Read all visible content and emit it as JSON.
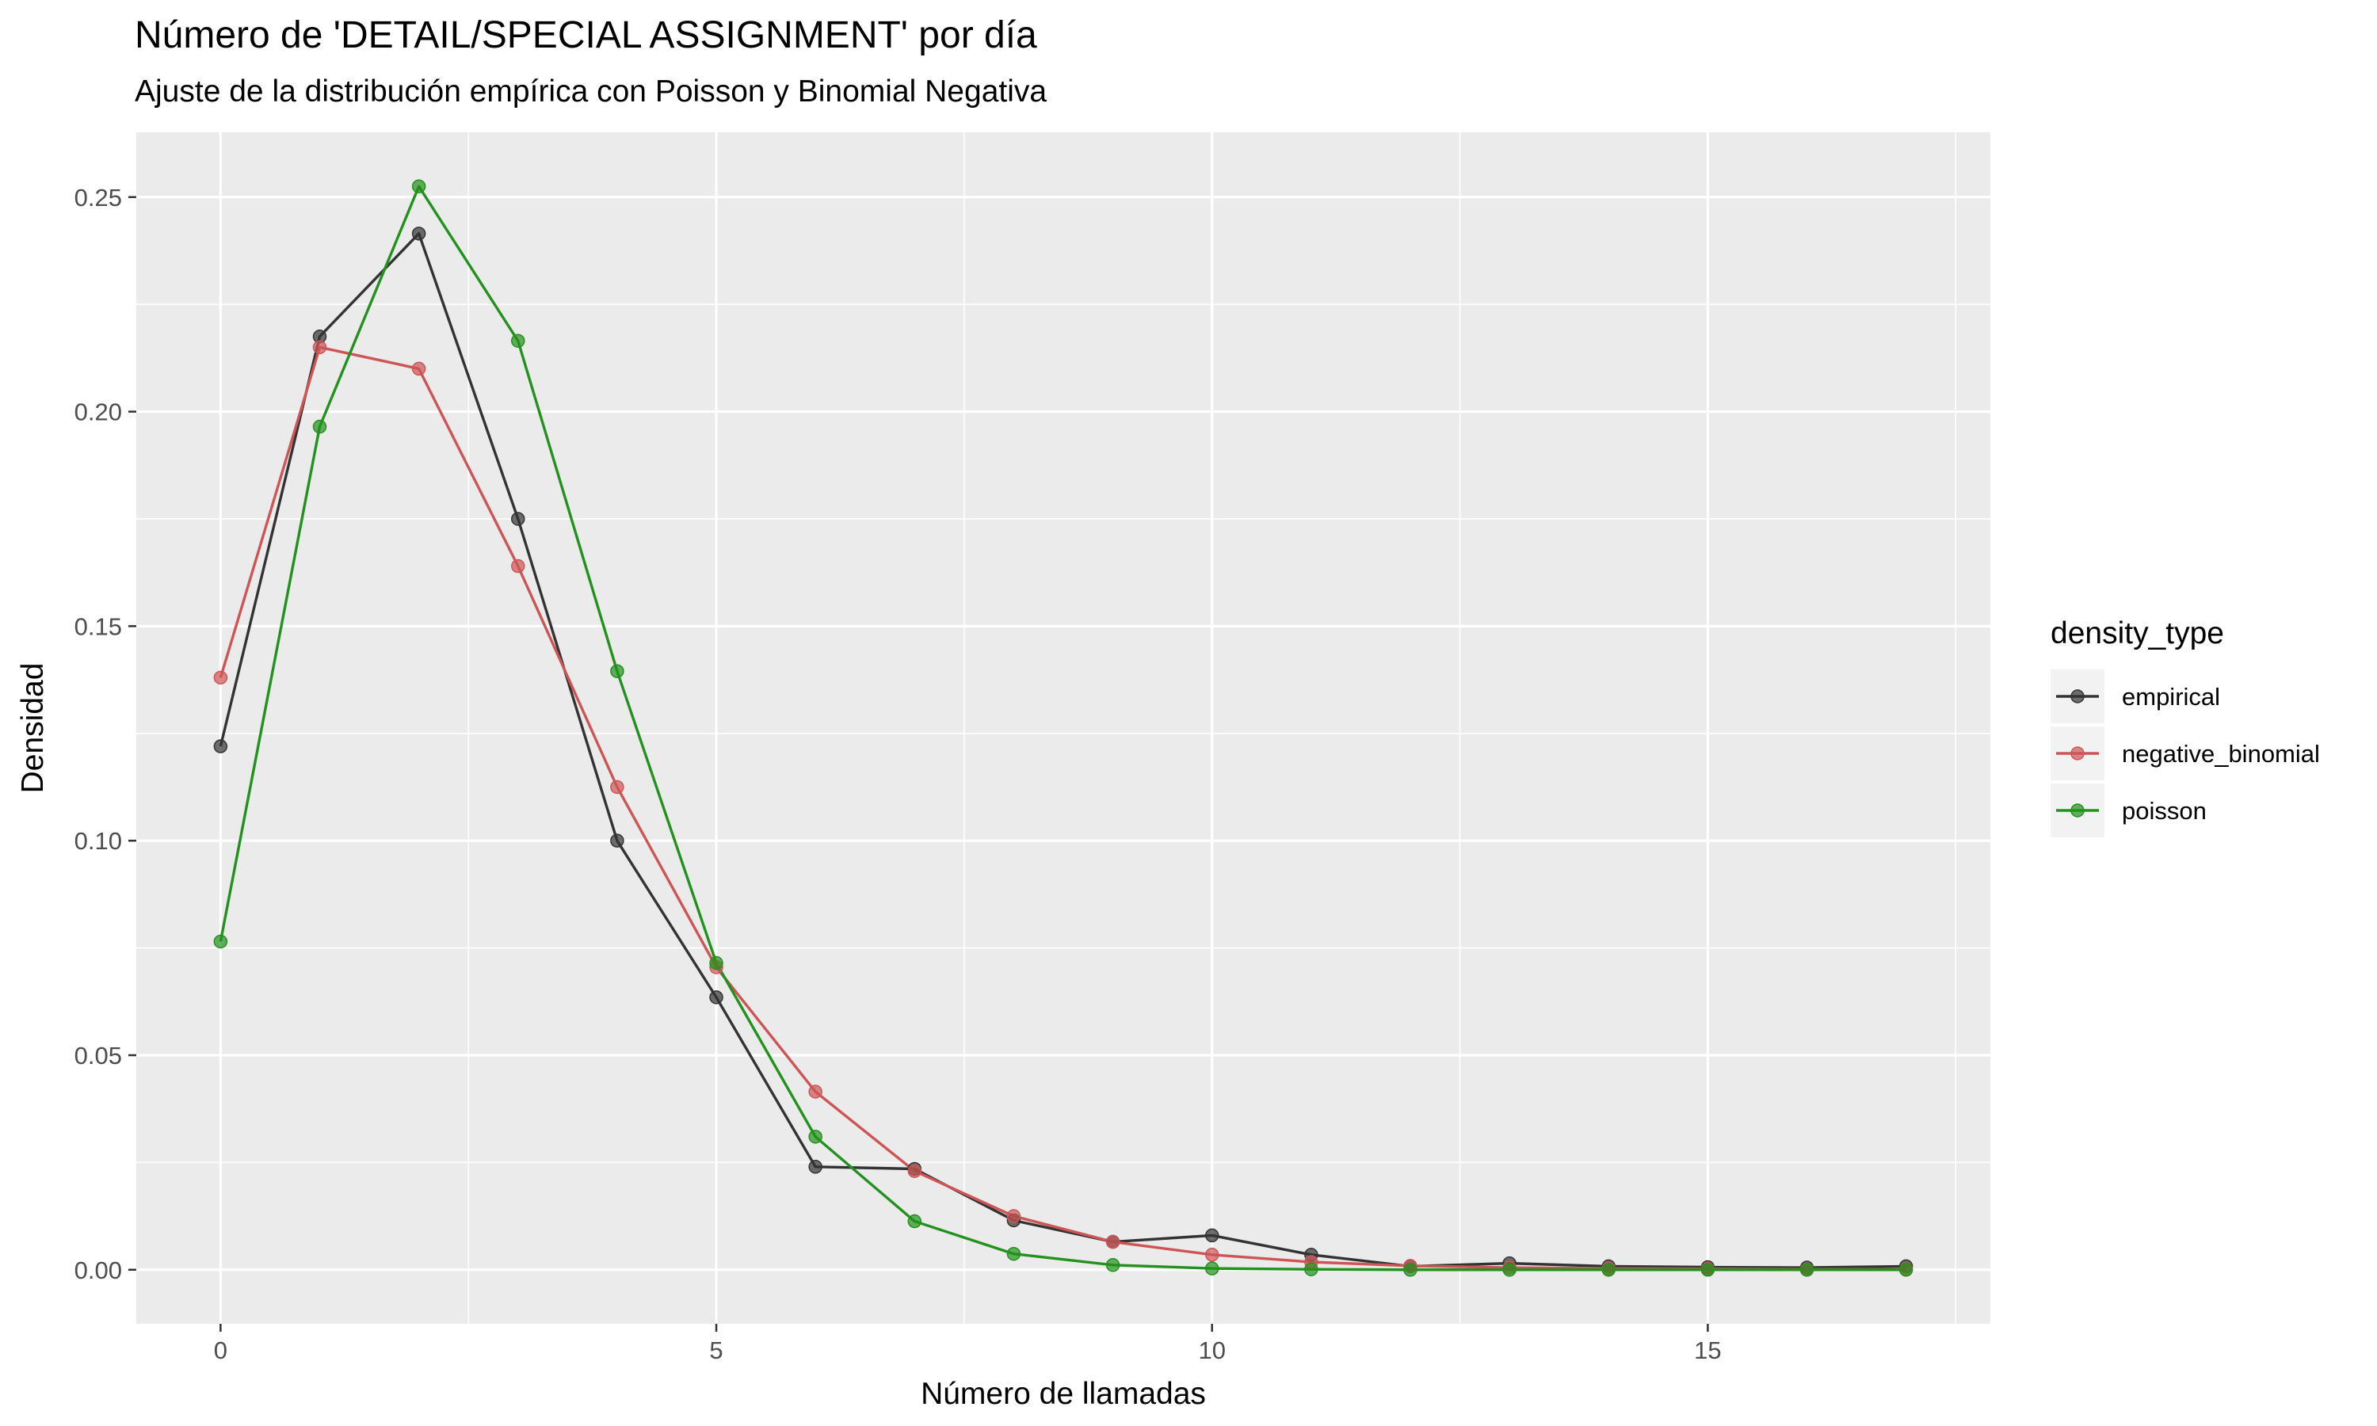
{
  "chart_data": {
    "type": "line",
    "title": "Número de 'DETAIL/SPECIAL ASSIGNMENT' por día",
    "subtitle": "Ajuste de la distribución empírica con Poisson y Binomial Negativa",
    "xlabel": "Número de llamadas",
    "ylabel": "Densidad",
    "xlim": [
      -0.85,
      17.85
    ],
    "ylim": [
      -0.0126,
      0.2651
    ],
    "x_ticks": [
      0,
      5,
      10,
      15
    ],
    "x_tick_labels": [
      "0",
      "5",
      "10",
      "15"
    ],
    "y_ticks": [
      0,
      0.05,
      0.1,
      0.15,
      0.2,
      0.25
    ],
    "y_tick_labels": [
      "0.00",
      "0.05",
      "0.10",
      "0.15",
      "0.20",
      "0.25"
    ],
    "grid": true,
    "legend": {
      "title": "density_type",
      "position": "right"
    },
    "x": [
      0,
      1,
      2,
      3,
      4,
      5,
      6,
      7,
      8,
      9,
      10,
      11,
      12,
      13,
      14,
      15,
      16,
      17
    ],
    "series": [
      {
        "name": "empirical",
        "color": "#333333",
        "values": [
          0.122,
          0.2175,
          0.2415,
          0.175,
          0.1,
          0.0635,
          0.024,
          0.0235,
          0.0115,
          0.0065,
          0.008,
          0.0035,
          0.0008,
          0.0015,
          0.0008,
          0.0006,
          0.0005,
          0.0008
        ]
      },
      {
        "name": "negative_binomial",
        "color": "#cd5555",
        "values": [
          0.138,
          0.215,
          0.21,
          0.164,
          0.1125,
          0.0705,
          0.0415,
          0.023,
          0.0125,
          0.0065,
          0.0035,
          0.0018,
          0.0009,
          0.0005,
          0.0003,
          0.0002,
          0.0001,
          0.0001
        ]
      },
      {
        "name": "poisson",
        "color": "#22911d",
        "values": [
          0.0765,
          0.1965,
          0.2525,
          0.2165,
          0.1395,
          0.0715,
          0.031,
          0.0113,
          0.0037,
          0.0011,
          0.0003,
          0.0001,
          0.0,
          0.0,
          0.0,
          0.0,
          0.0,
          0.0
        ]
      }
    ]
  }
}
